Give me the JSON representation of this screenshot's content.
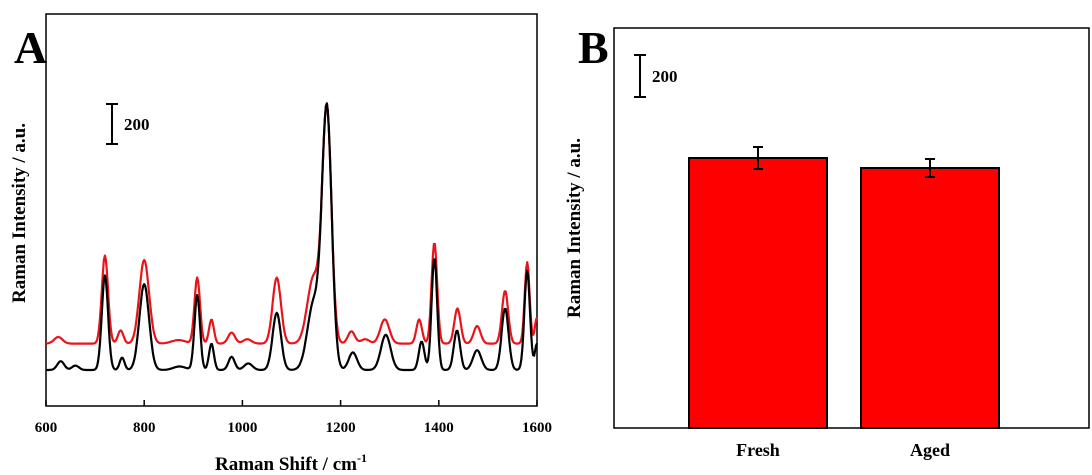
{
  "colors": {
    "red": "#ff0000",
    "spectrum_red": "#e8141b",
    "black": "#000000",
    "white": "#ffffff"
  },
  "chart_data": [
    {
      "panel": "A",
      "type": "line",
      "xlabel": "Raman Shift / cm",
      "xlabel_sup": "-1",
      "ylabel": "Raman Intensity / a.u.",
      "xlim": [
        600,
        1600
      ],
      "xticks": [
        "600",
        "800",
        "1000",
        "1200",
        "1400",
        "1600"
      ],
      "scale_bar": "200",
      "series": [
        {
          "color": "#e8141b",
          "baseline": 60,
          "peaks": [
            [
              625,
              15,
              12
            ],
            [
              720,
              200,
              9
            ],
            [
              752,
              30,
              8
            ],
            [
              800,
              190,
              14
            ],
            [
              870,
              8,
              20
            ],
            [
              908,
              150,
              8
            ],
            [
              937,
              55,
              7
            ],
            [
              978,
              25,
              10
            ],
            [
              1010,
              10,
              12
            ],
            [
              1070,
              150,
              12
            ],
            [
              1145,
              150,
              18
            ],
            [
              1172,
              530,
              13
            ],
            [
              1222,
              28,
              10
            ],
            [
              1250,
              10,
              12
            ],
            [
              1290,
              55,
              13
            ],
            [
              1360,
              55,
              8
            ],
            [
              1391,
              230,
              8
            ],
            [
              1438,
              80,
              9
            ],
            [
              1478,
              40,
              10
            ],
            [
              1535,
              120,
              9
            ],
            [
              1580,
              185,
              7
            ],
            [
              1600,
              60,
              6
            ]
          ]
        },
        {
          "color": "#000000",
          "baseline": 0,
          "peaks": [
            [
              630,
              20,
              10
            ],
            [
              660,
              10,
              10
            ],
            [
              720,
              215,
              9
            ],
            [
              755,
              28,
              7
            ],
            [
              800,
              195,
              14
            ],
            [
              872,
              8,
              18
            ],
            [
              908,
              170,
              8
            ],
            [
              937,
              60,
              7
            ],
            [
              978,
              30,
              9
            ],
            [
              1012,
              15,
              12
            ],
            [
              1070,
              130,
              12
            ],
            [
              1145,
              150,
              18
            ],
            [
              1172,
              590,
              14
            ],
            [
              1225,
              40,
              12
            ],
            [
              1292,
              80,
              14
            ],
            [
              1365,
              65,
              8
            ],
            [
              1391,
              255,
              8
            ],
            [
              1437,
              90,
              9
            ],
            [
              1478,
              45,
              12
            ],
            [
              1535,
              140,
              10
            ],
            [
              1580,
              225,
              8
            ],
            [
              1600,
              60,
              6
            ]
          ]
        }
      ]
    },
    {
      "panel": "B",
      "type": "bar",
      "ylabel": "Raman Intensity / a.u.",
      "categories": [
        "Fresh",
        "Aged"
      ],
      "values": [
        540,
        520
      ],
      "errors": [
        22,
        18
      ],
      "ylim": [
        0,
        800
      ],
      "scale_bar": "200"
    }
  ]
}
